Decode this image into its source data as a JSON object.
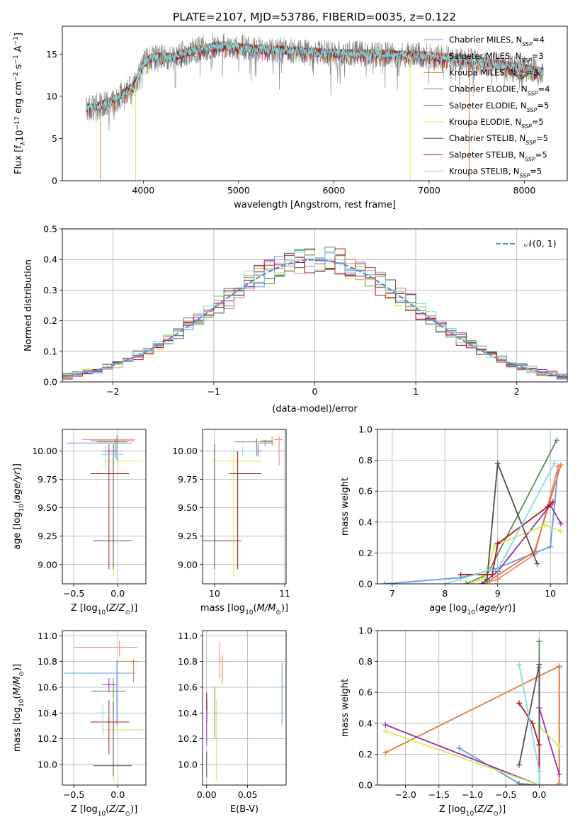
{
  "figure": {
    "title": "PLATE=2107, MJD=53786, FIBERID=0035, z=0.122"
  },
  "colors": {
    "chabrier_miles": "#6495ed",
    "salpeter_miles": "#f08080",
    "kroupa_miles": "#e07b32",
    "chabrier_elodie": "#5a8a5a",
    "salpeter_elodie": "#9b30b0",
    "kroupa_elodie": "#d4ec50",
    "chabrier_stelib": "#505050",
    "salpeter_stelib": "#b01818",
    "kroupa_stelib": "#80dce4",
    "data": "#808080",
    "normal": "#5b8ed6"
  },
  "legend": {
    "spectrum": [
      {
        "key": "chabrier_miles",
        "text": "Chabrier MILES, N",
        "sub": "SSP",
        "val": "=4"
      },
      {
        "key": "salpeter_miles",
        "text": "Salpeter MILES, N",
        "sub": "SSP",
        "val": "=3"
      },
      {
        "key": "kroupa_miles",
        "text": "Kroupa MILES, N",
        "sub": "SSP",
        "val": "=3"
      },
      {
        "key": "chabrier_elodie",
        "text": "Chabrier ELODIE, N",
        "sub": "SSP",
        "val": "=4"
      },
      {
        "key": "salpeter_elodie",
        "text": "Salpeter ELODIE, N",
        "sub": "SSP",
        "val": "=5"
      },
      {
        "key": "kroupa_elodie",
        "text": "Kroupa ELODIE, N",
        "sub": "SSP",
        "val": "=5"
      },
      {
        "key": "chabrier_stelib",
        "text": "Chabrier STELIB, N",
        "sub": "SSP",
        "val": "=5"
      },
      {
        "key": "salpeter_stelib",
        "text": "Salpeter STELIB, N",
        "sub": "SSP",
        "val": "=5"
      },
      {
        "key": "kroupa_stelib",
        "text": "Kroupa STELIB, N",
        "sub": "SSP",
        "val": "=5"
      }
    ],
    "histogram": "𝒩(0, 1)"
  },
  "chart_data": [
    {
      "id": "spectrum",
      "type": "line",
      "xlabel": "wavelength [Angstrom, rest frame]",
      "ylabel": "Flux [f_λ 10^-17 erg cm^-2 s^-1 A^-1]",
      "xlim": [
        3150,
        8450
      ],
      "ylim": [
        0,
        18.3
      ],
      "xticks": [
        "4000",
        "5000",
        "6000",
        "7000",
        "8000"
      ],
      "yticks": [
        "0",
        "5",
        "10",
        "15"
      ],
      "x_range": [
        3400,
        8200
      ],
      "continuum": {
        "wavelength": [
          3400,
          3550,
          3700,
          3900,
          4000,
          4100,
          4300,
          4500,
          4800,
          5200,
          5600,
          6000,
          6500,
          7000,
          7500,
          8000,
          8200
        ],
        "flux": [
          8.6,
          8.9,
          9.6,
          11.2,
          13.8,
          14.7,
          14.6,
          15.4,
          16.0,
          15.6,
          15.4,
          15.1,
          15.0,
          14.8,
          14.2,
          13.3,
          12.9
        ]
      },
      "fit_dropouts": [
        {
          "key": "kroupa_miles",
          "start": 3400,
          "end": 3550
        },
        {
          "key": "kroupa_elodie",
          "start": 3400,
          "end": 3920
        },
        {
          "key": "kroupa_elodie",
          "start": 6800,
          "end": 8200
        },
        {
          "key": "kroupa_miles",
          "start": 7420,
          "end": 8200
        }
      ]
    },
    {
      "id": "residuals",
      "type": "bar",
      "xlabel": "(data-model)/error",
      "ylabel": "Normed distribution",
      "xlim": [
        -2.5,
        2.5
      ],
      "ylim": [
        0,
        0.5
      ],
      "xticks": [
        "−2",
        "−1",
        "0",
        "1",
        "2"
      ],
      "yticks": [
        "0.0",
        "0.1",
        "0.2",
        "0.3",
        "0.4",
        "0.5"
      ],
      "bin_width": 0.1,
      "normal": {
        "mean": 0,
        "sigma": 1,
        "label": "𝒩(0, 1)"
      }
    },
    {
      "id": "age_vs_Z",
      "type": "scatter",
      "xlabel": "Z [log10(Z/Z☉)]",
      "ylabel": "age  [log10(age/yr)]",
      "xlim": [
        -0.63,
        0.32
      ],
      "ylim": [
        8.83,
        10.19
      ],
      "xticks": [
        "−0.5",
        "0.0"
      ],
      "yticks": [
        "9.00",
        "9.25",
        "9.50",
        "9.75",
        "10.00"
      ],
      "points": [
        {
          "key": "chabrier_miles",
          "x": -0.01,
          "y": 10.07,
          "xerr": [
            0.57,
            0.17
          ],
          "yerr": [
            0.15,
            0.05
          ]
        },
        {
          "key": "salpeter_miles",
          "x": -0.01,
          "y": 10.1,
          "xerr": [
            0.4,
            0.21
          ],
          "yerr": [
            0.04,
            0.04
          ]
        },
        {
          "key": "kroupa_miles",
          "x": -0.01,
          "y": 10.09,
          "xerr": [
            0.3,
            0.2
          ],
          "yerr": [
            0.04,
            0.03
          ]
        },
        {
          "key": "chabrier_elodie",
          "x": -0.03,
          "y": 10.08,
          "xerr": [
            0.21,
            0.14
          ],
          "yerr": [
            0.14,
            0.02
          ]
        },
        {
          "key": "salpeter_elodie",
          "x": -0.1,
          "y": 10.0,
          "xerr": [
            0.07,
            0.09
          ],
          "yerr": [
            0.04,
            0.06
          ]
        },
        {
          "key": "kroupa_elodie",
          "x": -0.05,
          "y": 9.91,
          "xerr": [
            0.08,
            0.33
          ],
          "yerr": [
            1.02,
            0.1
          ]
        },
        {
          "key": "chabrier_stelib",
          "x": -0.05,
          "y": 9.21,
          "xerr": [
            0.23,
            0.21
          ],
          "yerr": [
            0.25,
            0.85
          ]
        },
        {
          "key": "salpeter_stelib",
          "x": -0.1,
          "y": 9.8,
          "xerr": [
            0.21,
            0.23
          ],
          "yerr": [
            0.84,
            0.2
          ]
        },
        {
          "key": "kroupa_stelib",
          "x": -0.14,
          "y": 9.97,
          "xerr": [
            0.04,
            0.2
          ],
          "yerr": [
            0.13,
            0.07
          ]
        }
      ]
    },
    {
      "id": "age_vs_mass",
      "type": "scatter",
      "xlabel": "mass [log10(M/M☉)]",
      "ylabel": "",
      "xlim": [
        9.83,
        11.02
      ],
      "ylim": [
        8.83,
        10.19
      ],
      "xticks": [
        "10",
        "11"
      ],
      "yticks": [
        "9.00",
        "9.25",
        "9.50",
        "9.75",
        "10.00"
      ],
      "points": [
        {
          "key": "chabrier_miles",
          "x": 10.72,
          "y": 10.07,
          "xerr": [
            0.08,
            0.12
          ],
          "yerr": [
            0.03,
            0.03
          ]
        },
        {
          "key": "salpeter_miles",
          "x": 10.92,
          "y": 10.1,
          "xerr": [
            0.07,
            0.05
          ],
          "yerr": [
            0.23,
            0.03
          ]
        },
        {
          "key": "kroupa_miles",
          "x": 10.82,
          "y": 10.09,
          "xerr": [
            0.16,
            0.02
          ],
          "yerr": [
            0.04,
            0.04
          ]
        },
        {
          "key": "chabrier_elodie",
          "x": 10.6,
          "y": 10.08,
          "xerr": [
            0.32,
            0.22
          ],
          "yerr": [
            0.12,
            0.03
          ]
        },
        {
          "key": "salpeter_elodie",
          "x": 10.62,
          "y": 10.0,
          "xerr": [
            0.06,
            0.05
          ],
          "yerr": [
            0.05,
            0.07
          ]
        },
        {
          "key": "kroupa_elodie",
          "x": 10.27,
          "y": 9.91,
          "xerr": [
            0.32,
            0.4
          ],
          "yerr": [
            1.02,
            0.1
          ]
        },
        {
          "key": "chabrier_stelib",
          "x": 10.0,
          "y": 9.21,
          "xerr": [
            0.17,
            0.38
          ],
          "yerr": [
            0.25,
            0.85
          ]
        },
        {
          "key": "salpeter_stelib",
          "x": 10.33,
          "y": 9.8,
          "xerr": [
            0.12,
            0.34
          ],
          "yerr": [
            0.84,
            0.2
          ]
        },
        {
          "key": "kroupa_stelib",
          "x": 10.4,
          "y": 10.0,
          "xerr": [
            0.2,
            0.21
          ],
          "yerr": [
            0.03,
            0.04
          ]
        }
      ]
    },
    {
      "id": "weight_vs_age",
      "type": "line",
      "xlabel": "age  [log10(age/yr)]",
      "ylabel": "mass weight",
      "xlim": [
        6.72,
        10.32
      ],
      "ylim": [
        0,
        1
      ],
      "xticks": [
        "7",
        "8",
        "9",
        "10"
      ],
      "yticks": [
        "0.0",
        "0.2",
        "0.4",
        "0.6",
        "0.8",
        "1.0"
      ],
      "series": [
        {
          "key": "chabrier_miles",
          "x": [
            6.85,
            8.3,
            8.9,
            10.0,
            10.15
          ],
          "y": [
            0.0,
            0.04,
            0.09,
            0.24,
            0.76
          ]
        },
        {
          "key": "salpeter_miles",
          "x": [
            8.7,
            9.0,
            9.7,
            10.15
          ],
          "y": [
            0.0,
            0.03,
            0.19,
            0.76
          ]
        },
        {
          "key": "kroupa_miles",
          "x": [
            8.8,
            9.7,
            10.2
          ],
          "y": [
            0.01,
            0.21,
            0.77
          ]
        },
        {
          "key": "chabrier_elodie",
          "x": [
            8.4,
            8.8,
            10.12
          ],
          "y": [
            0.0,
            0.06,
            0.93
          ]
        },
        {
          "key": "salpeter_elodie",
          "x": [
            8.7,
            9.0,
            10.0,
            10.2
          ],
          "y": [
            0.0,
            0.08,
            0.51,
            0.39
          ]
        },
        {
          "key": "kroupa_elodie",
          "x": [
            8.5,
            8.75,
            8.95,
            9.9,
            10.2
          ],
          "y": [
            0.0,
            0.04,
            0.25,
            0.38,
            0.34
          ]
        },
        {
          "key": "chabrier_stelib",
          "x": [
            8.7,
            8.8,
            9.0,
            9.75
          ],
          "y": [
            0.0,
            0.03,
            0.78,
            0.13
          ]
        },
        {
          "key": "salpeter_stelib",
          "x": [
            8.3,
            8.9,
            9.0,
            9.95,
            10.05
          ],
          "y": [
            0.06,
            0.06,
            0.26,
            0.5,
            0.53
          ]
        },
        {
          "key": "kroupa_stelib",
          "x": [
            8.0,
            8.85,
            9.0,
            10.08
          ],
          "y": [
            0.0,
            0.09,
            0.09,
            0.78
          ]
        }
      ]
    },
    {
      "id": "mass_vs_Z",
      "type": "scatter",
      "xlabel": "Z [log10(Z/Z☉)]",
      "ylabel": "mass [log10(M/M☉)]",
      "xlim": [
        -0.63,
        0.32
      ],
      "ylim": [
        9.84,
        11.04
      ],
      "xticks": [
        "−0.5",
        "0.0"
      ],
      "yticks": [
        "10.0",
        "10.2",
        "10.4",
        "10.6",
        "10.8",
        "11.0"
      ],
      "points": [
        {
          "key": "chabrier_miles",
          "x": -0.01,
          "y": 10.71,
          "xerr": [
            0.6,
            0.21
          ],
          "yerr": [
            0.4,
            0.1
          ]
        },
        {
          "key": "salpeter_miles",
          "x": 0.02,
          "y": 10.91,
          "xerr": [
            0.52,
            0.2
          ],
          "yerr": [
            0.07,
            0.05
          ]
        },
        {
          "key": "kroupa_miles",
          "x": 0.18,
          "y": 10.8,
          "xerr": [
            0.18,
            0.05
          ],
          "yerr": [
            0.16,
            0.02
          ]
        },
        {
          "key": "chabrier_elodie",
          "x": -0.05,
          "y": 10.57,
          "xerr": [
            0.25,
            0.14
          ],
          "yerr": [
            0.15,
            0.1
          ]
        },
        {
          "key": "salpeter_elodie",
          "x": -0.1,
          "y": 10.62,
          "xerr": [
            0.08,
            0.09
          ],
          "yerr": [
            0.06,
            0.05
          ]
        },
        {
          "key": "kroupa_elodie",
          "x": -0.05,
          "y": 10.27,
          "xerr": [
            0.12,
            0.36
          ],
          "yerr": [
            0.4,
            0.24
          ]
        },
        {
          "key": "chabrier_stelib",
          "x": -0.05,
          "y": 9.99,
          "xerr": [
            0.23,
            0.21
          ],
          "yerr": [
            0.08,
            0.5
          ]
        },
        {
          "key": "salpeter_stelib",
          "x": -0.1,
          "y": 10.33,
          "xerr": [
            0.21,
            0.23
          ],
          "yerr": [
            0.25,
            0.17
          ]
        },
        {
          "key": "kroupa_stelib",
          "x": -0.17,
          "y": 10.4,
          "xerr": [
            0.06,
            0.1
          ],
          "yerr": [
            0.17,
            0.07
          ]
        }
      ]
    },
    {
      "id": "mass_vs_EBV",
      "type": "scatter",
      "xlabel": "E(B-V)",
      "ylabel": "",
      "xlim": [
        -0.005,
        0.097
      ],
      "ylim": [
        9.84,
        11.04
      ],
      "xticks": [
        "0.00",
        "0.05"
      ],
      "yticks": [
        "10.0",
        "10.2",
        "10.4",
        "10.6",
        "10.8",
        "11.0"
      ],
      "points": [
        {
          "key": "chabrier_miles",
          "x": 0.092,
          "y": 10.55,
          "xerr": [
            0,
            0
          ],
          "yerr": [
            0.24,
            0.24
          ]
        },
        {
          "key": "salpeter_miles",
          "x": 0.016,
          "y": 10.81,
          "xerr": [
            0,
            0
          ],
          "yerr": [
            0.14,
            0.14
          ]
        },
        {
          "key": "kroupa_miles",
          "x": 0.019,
          "y": 10.74,
          "xerr": [
            0,
            0
          ],
          "yerr": [
            0.11,
            0.11
          ]
        },
        {
          "key": "chabrier_elodie",
          "x": 0.01,
          "y": 10.4,
          "xerr": [
            0,
            0
          ],
          "yerr": [
            0.2,
            0.2
          ]
        },
        {
          "key": "salpeter_elodie",
          "x": 0.0,
          "y": 10.35,
          "xerr": [
            0,
            0
          ],
          "yerr": [
            0.2,
            0.2
          ]
        },
        {
          "key": "kroupa_elodie",
          "x": 0.012,
          "y": 10.19,
          "xerr": [
            0,
            0
          ],
          "yerr": [
            0.32,
            0.32
          ]
        },
        {
          "key": "chabrier_stelib",
          "x": 0.0,
          "y": 10.0,
          "xerr": [
            0,
            0
          ],
          "yerr": [
            0.1,
            0.1
          ]
        },
        {
          "key": "salpeter_stelib",
          "x": 0.0,
          "y": 10.49,
          "xerr": [
            0,
            0
          ],
          "yerr": [
            0.07,
            0.07
          ]
        },
        {
          "key": "kroupa_stelib",
          "x": 0.001,
          "y": 10.41,
          "xerr": [
            0,
            0
          ],
          "yerr": [
            0.08,
            0.08
          ]
        }
      ]
    },
    {
      "id": "weight_vs_Z",
      "type": "line",
      "xlabel": "Z [log10(Z/Z☉)]",
      "ylabel": "mass weight",
      "xlim": [
        -2.42,
        0.42
      ],
      "ylim": [
        0,
        1
      ],
      "xticks": [
        "−2.0",
        "−1.5",
        "−1.0",
        "−0.5",
        "0.0"
      ],
      "yticks": [
        "0.0",
        "0.2",
        "0.4",
        "0.6",
        "0.8",
        "1.0"
      ],
      "series": [
        {
          "key": "chabrier_miles",
          "x": [
            -1.2,
            -0.3,
            0.0,
            0.0
          ],
          "y": [
            0.24,
            0.01,
            0.0,
            0.76
          ]
        },
        {
          "key": "salpeter_miles",
          "x": [
            0.0,
            0.3,
            0.3
          ],
          "y": [
            0.0,
            0.0,
            0.76
          ]
        },
        {
          "key": "kroupa_miles",
          "x": [
            -2.3,
            0.3,
            0.3
          ],
          "y": [
            0.21,
            0.77,
            0.01
          ]
        },
        {
          "key": "chabrier_elodie",
          "x": [
            -0.3,
            0.0,
            0.0
          ],
          "y": [
            0.0,
            0.0,
            0.93
          ]
        },
        {
          "key": "salpeter_elodie",
          "x": [
            -2.3,
            0.0,
            0.0,
            0.3
          ],
          "y": [
            0.39,
            0.0,
            0.5,
            0.07
          ]
        },
        {
          "key": "kroupa_elodie",
          "x": [
            -2.3,
            0.0,
            0.0,
            0.3
          ],
          "y": [
            0.35,
            0.0,
            0.38,
            0.25
          ]
        },
        {
          "key": "chabrier_stelib",
          "x": [
            -0.3,
            0.0,
            0.0
          ],
          "y": [
            0.13,
            0.78,
            0.0
          ]
        },
        {
          "key": "salpeter_stelib",
          "x": [
            -0.3,
            -0.1,
            0.0,
            0.0
          ],
          "y": [
            0.53,
            0.4,
            0.26,
            0.0
          ]
        },
        {
          "key": "kroupa_stelib",
          "x": [
            -0.3,
            0.0,
            0.0
          ],
          "y": [
            0.78,
            0.09,
            0.0
          ]
        }
      ]
    }
  ]
}
